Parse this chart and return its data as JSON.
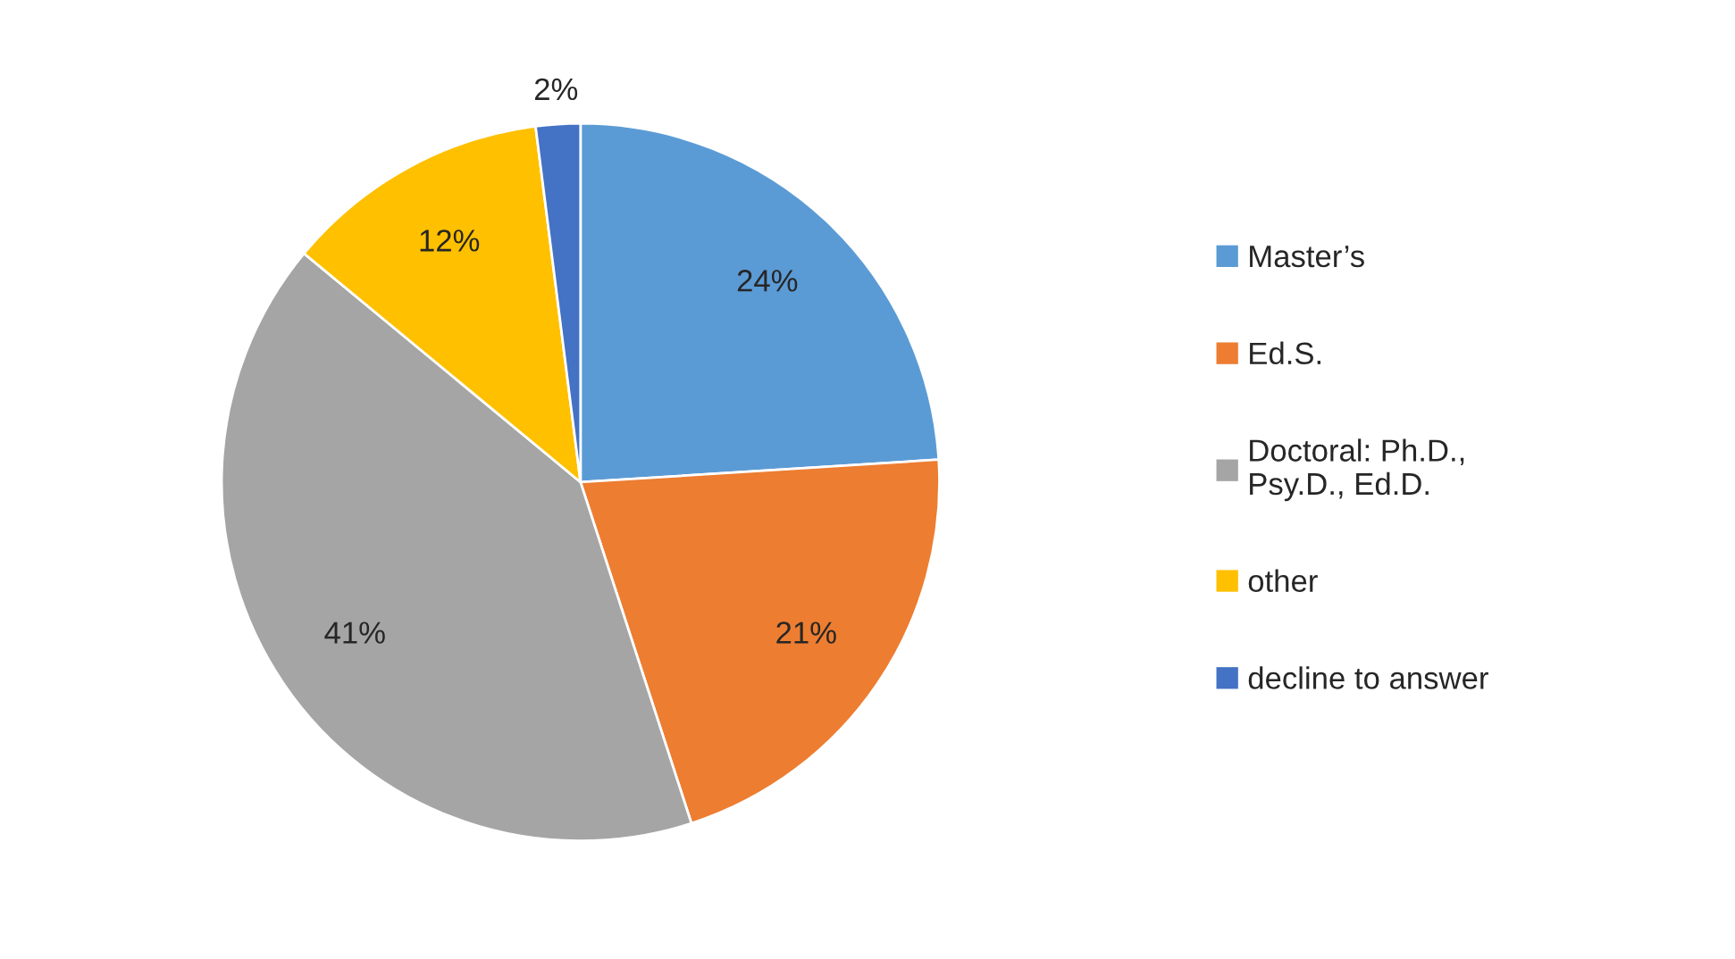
{
  "chart_data": {
    "type": "pie",
    "categories": [
      "Master’s",
      "Ed.S.",
      "Doctoral: Ph.D.,\nPsy.D., Ed.D.",
      "other",
      "decline to answer"
    ],
    "values": [
      24,
      21,
      41,
      12,
      2
    ],
    "colors": [
      "#5b9bd5",
      "#ed7d31",
      "#a5a5a5",
      "#ffc000",
      "#4472c4"
    ],
    "value_labels": [
      "24%",
      "21%",
      "41%",
      "12%",
      "2%"
    ],
    "legend": "right"
  }
}
